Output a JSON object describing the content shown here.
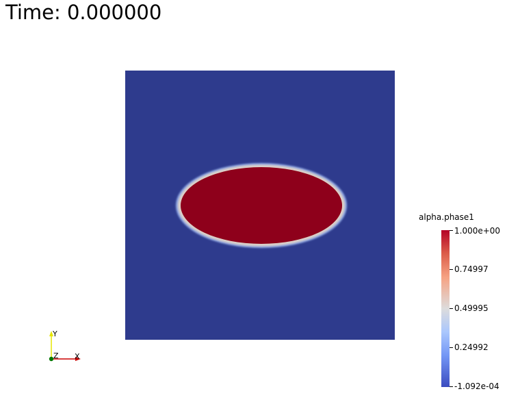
{
  "time_annotation": {
    "text": "Time: 0.000000"
  },
  "render_view": {
    "background_color": "#2e3b8d",
    "droplet_color": "#8e001b",
    "interface_color": "#dcd0c8"
  },
  "orientation_axes": {
    "x_label": "X",
    "y_label": "Y",
    "z_label": "Z",
    "x_color": "#cc0000",
    "y_color": "#e6e600",
    "z_color": "#007700"
  },
  "color_legend": {
    "title": "alpha.phase1",
    "labels": {
      "max": "1.000e+00",
      "q3": "0.74997",
      "mid": "0.49995",
      "q1": "0.24992",
      "min": "-1.092e-04"
    }
  }
}
